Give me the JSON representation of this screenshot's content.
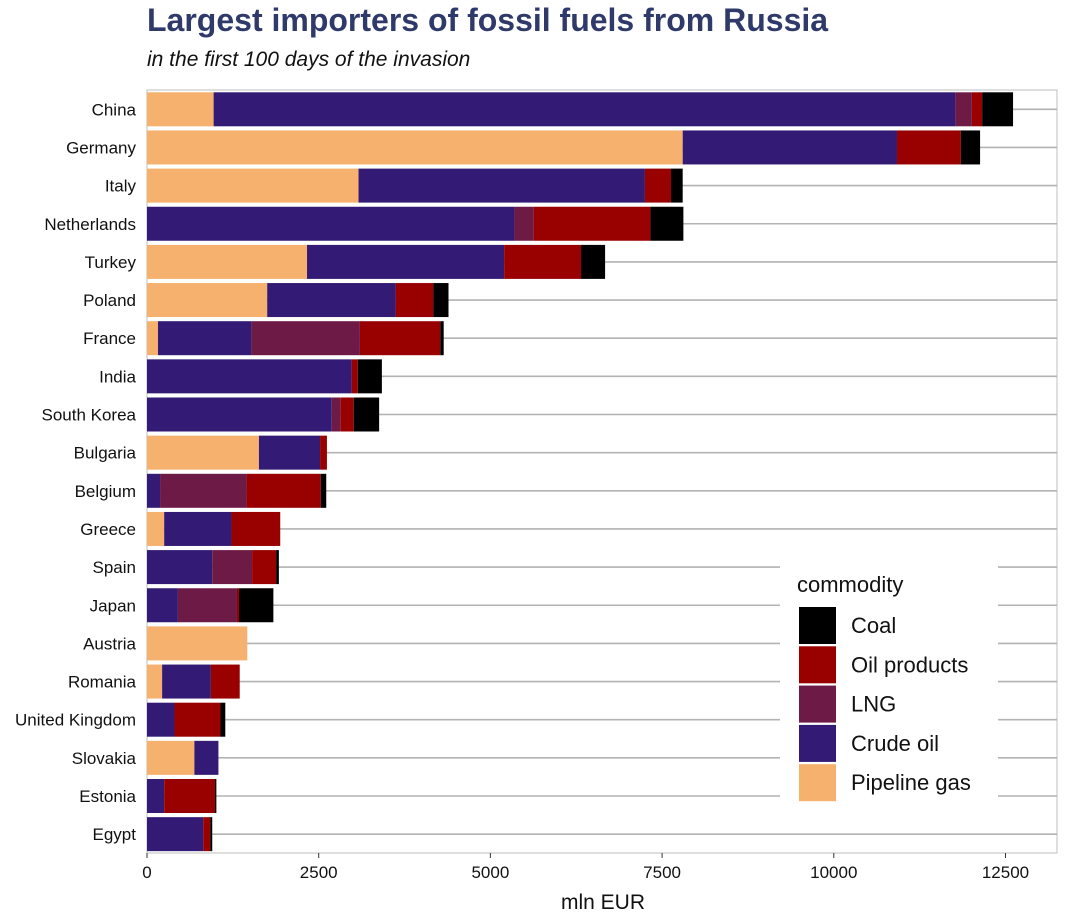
{
  "chart_data": {
    "type": "bar",
    "orientation": "horizontal",
    "stacked": true,
    "title": "Largest importers of fossil fuels from Russia",
    "subtitle": "in the first 100 days of the invasion",
    "xlabel": "mln EUR",
    "ylabel": "",
    "xlim": [
      0,
      13250
    ],
    "xticks": [
      0,
      2500,
      5000,
      7500,
      10000,
      12500
    ],
    "xtick_labels": [
      "0",
      "2500",
      "5000",
      "7500",
      "10000",
      "12500"
    ],
    "grid": true,
    "legend": {
      "title": "commodity",
      "position": "bottom-right"
    },
    "categories": [
      "China",
      "Germany",
      "Italy",
      "Netherlands",
      "Turkey",
      "Poland",
      "France",
      "India",
      "South Korea",
      "Bulgaria",
      "Belgium",
      "Greece",
      "Spain",
      "Japan",
      "Austria",
      "Romania",
      "United Kingdom",
      "Slovakia",
      "Estonia",
      "Egypt"
    ],
    "series": [
      {
        "name": "Pipeline gas",
        "color": "#f5b16d",
        "values": [
          970,
          7800,
          3080,
          0,
          2330,
          1750,
          160,
          0,
          0,
          1630,
          0,
          250,
          0,
          0,
          1460,
          220,
          0,
          690,
          0,
          0
        ]
      },
      {
        "name": "Crude oil",
        "color": "#331a75",
        "values": [
          10800,
          3120,
          4170,
          5350,
          2870,
          1870,
          1360,
          2980,
          2690,
          890,
          190,
          980,
          950,
          450,
          0,
          710,
          400,
          350,
          250,
          820
        ]
      },
      {
        "name": "LNG",
        "color": "#6e1a47",
        "values": [
          240,
          0,
          0,
          280,
          0,
          0,
          1580,
          0,
          130,
          0,
          1260,
          0,
          580,
          860,
          0,
          0,
          0,
          0,
          0,
          0
        ]
      },
      {
        "name": "Oil products",
        "color": "#990000",
        "values": [
          150,
          930,
          380,
          1700,
          1120,
          550,
          1170,
          90,
          190,
          100,
          1080,
          710,
          350,
          30,
          0,
          420,
          670,
          0,
          740,
          100
        ]
      },
      {
        "name": "Coal",
        "color": "#000000",
        "values": [
          450,
          280,
          170,
          480,
          350,
          220,
          50,
          350,
          370,
          0,
          80,
          0,
          40,
          500,
          0,
          0,
          70,
          0,
          20,
          30
        ]
      }
    ],
    "legend_order": [
      "Coal",
      "Oil products",
      "LNG",
      "Crude oil",
      "Pipeline gas"
    ]
  }
}
